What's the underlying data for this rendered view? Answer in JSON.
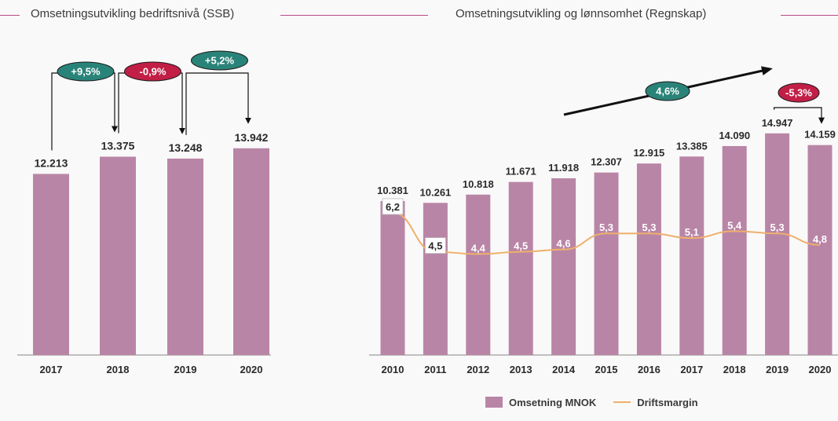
{
  "colors": {
    "bar": "#b985a6",
    "line": "#eeb06b",
    "rule": "#b54c84",
    "pos_badge": "#2a8379",
    "neg_badge": "#c11f46",
    "text": "#2a2a2a"
  },
  "left_panel": {
    "title": "Omsetningsutvikling bedriftsnivå (SSB)"
  },
  "right_panel": {
    "title": "Omsetningsutvikling og lønnsomhet (Regnskap)"
  },
  "legend": {
    "bar_label": "Omsetning MNOK",
    "line_label": "Driftsmargin"
  },
  "chart_data": [
    {
      "type": "bar",
      "title": "Omsetningsutvikling bedriftsnivå (SSB)",
      "categories": [
        "2017",
        "2018",
        "2019",
        "2020"
      ],
      "values": [
        12213,
        13375,
        13248,
        13942
      ],
      "value_labels": [
        "12.213",
        "13.375",
        "13.248",
        "13.942"
      ],
      "ylim": [
        0,
        16900
      ],
      "grid": false,
      "change_badges": [
        {
          "from": "2017",
          "to": "2018",
          "label": "+9,5%",
          "sign": "positive"
        },
        {
          "from": "2018",
          "to": "2019",
          "label": "-0,9%",
          "sign": "negative"
        },
        {
          "from": "2019",
          "to": "2020",
          "label": "+5,2%",
          "sign": "positive"
        }
      ]
    },
    {
      "type": "bar",
      "title": "Omsetningsutvikling og lønnsomhet (Regnskap)",
      "categories": [
        "2010",
        "2011",
        "2012",
        "2013",
        "2014",
        "2015",
        "2016",
        "2017",
        "2018",
        "2019",
        "2020"
      ],
      "series": [
        {
          "name": "Omsetning MNOK",
          "type": "bar",
          "values": [
            10381,
            10261,
            10818,
            11671,
            11918,
            12307,
            12915,
            13385,
            14090,
            14947,
            14159
          ],
          "value_labels": [
            "10.381",
            "10.261",
            "10.818",
            "11.671",
            "11.918",
            "12.307",
            "12.915",
            "13.385",
            "14.090",
            "14.947",
            "14.159"
          ]
        },
        {
          "name": "Driftsmargin",
          "type": "line",
          "values": [
            6.2,
            4.5,
            4.4,
            4.5,
            4.6,
            5.3,
            5.3,
            5.1,
            5.4,
            5.3,
            4.8
          ],
          "value_labels": [
            "6,2",
            "4,5",
            "4,4",
            "4,5",
            "4,6",
            "5,3",
            "5,3",
            "5,1",
            "5,4",
            "5,3",
            "4,8"
          ]
        }
      ],
      "ylim": [
        0,
        16900
      ],
      "margin_ylim": [
        0,
        13.2
      ],
      "legend": "bottom",
      "grid": false,
      "trend_badge": {
        "label": "4,6%"
      },
      "change_badges": [
        {
          "from": "2019",
          "to": "2020",
          "label": "-5,3%",
          "sign": "negative"
        }
      ]
    }
  ]
}
